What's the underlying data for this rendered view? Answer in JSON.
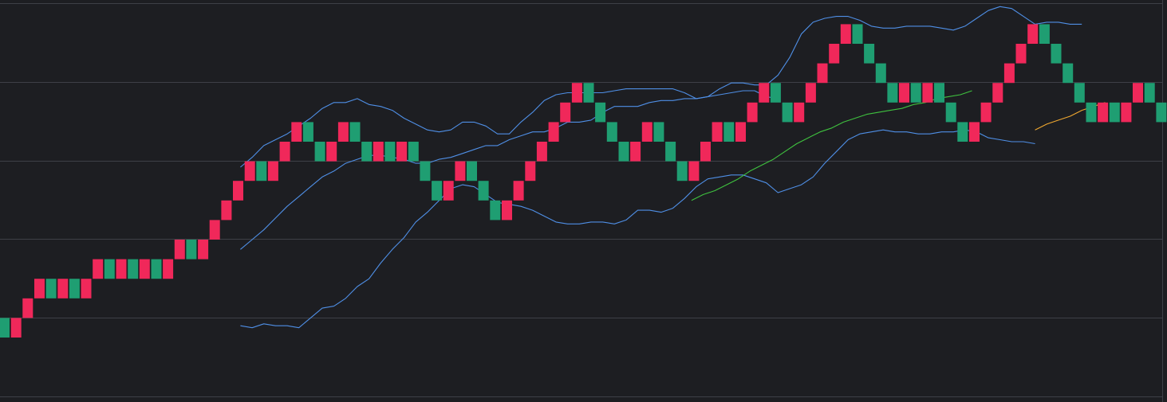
{
  "chart_data": {
    "type": "renko",
    "grid": true,
    "colors": {
      "background": "#1d1e22",
      "grid": "#3e4047",
      "border": "#3e4047",
      "up_brick": "#f0285a",
      "down_brick": "#1f9e72",
      "upper_band": "#4f8fe6",
      "middle_band": "#4f8fe6",
      "lower_band": "#4f8fe6",
      "moving_average": "#3fc23f",
      "long_average": "#f0a830"
    },
    "bricks": [
      {
        "level": 0,
        "dir": "down"
      },
      {
        "level": 0,
        "dir": "up"
      },
      {
        "level": 1,
        "dir": "up"
      },
      {
        "level": 2,
        "dir": "up"
      },
      {
        "level": 2,
        "dir": "down"
      },
      {
        "level": 2,
        "dir": "up"
      },
      {
        "level": 2,
        "dir": "down"
      },
      {
        "level": 2,
        "dir": "up"
      },
      {
        "level": 3,
        "dir": "up"
      },
      {
        "level": 3,
        "dir": "down"
      },
      {
        "level": 3,
        "dir": "up"
      },
      {
        "level": 3,
        "dir": "down"
      },
      {
        "level": 3,
        "dir": "up"
      },
      {
        "level": 3,
        "dir": "down"
      },
      {
        "level": 3,
        "dir": "up"
      },
      {
        "level": 4,
        "dir": "up"
      },
      {
        "level": 4,
        "dir": "down"
      },
      {
        "level": 4,
        "dir": "up"
      },
      {
        "level": 5,
        "dir": "up"
      },
      {
        "level": 6,
        "dir": "up"
      },
      {
        "level": 7,
        "dir": "up"
      },
      {
        "level": 8,
        "dir": "up"
      },
      {
        "level": 8,
        "dir": "down"
      },
      {
        "level": 8,
        "dir": "up"
      },
      {
        "level": 9,
        "dir": "up"
      },
      {
        "level": 10,
        "dir": "up"
      },
      {
        "level": 10,
        "dir": "down"
      },
      {
        "level": 9,
        "dir": "down"
      },
      {
        "level": 9,
        "dir": "up"
      },
      {
        "level": 10,
        "dir": "up"
      },
      {
        "level": 10,
        "dir": "down"
      },
      {
        "level": 9,
        "dir": "down"
      },
      {
        "level": 9,
        "dir": "up"
      },
      {
        "level": 9,
        "dir": "down"
      },
      {
        "level": 9,
        "dir": "up"
      },
      {
        "level": 9,
        "dir": "down"
      },
      {
        "level": 8,
        "dir": "down"
      },
      {
        "level": 7,
        "dir": "down"
      },
      {
        "level": 7,
        "dir": "up"
      },
      {
        "level": 8,
        "dir": "up"
      },
      {
        "level": 8,
        "dir": "down"
      },
      {
        "level": 7,
        "dir": "down"
      },
      {
        "level": 6,
        "dir": "down"
      },
      {
        "level": 6,
        "dir": "up"
      },
      {
        "level": 7,
        "dir": "up"
      },
      {
        "level": 8,
        "dir": "up"
      },
      {
        "level": 9,
        "dir": "up"
      },
      {
        "level": 10,
        "dir": "up"
      },
      {
        "level": 11,
        "dir": "up"
      },
      {
        "level": 12,
        "dir": "up"
      },
      {
        "level": 12,
        "dir": "down"
      },
      {
        "level": 11,
        "dir": "down"
      },
      {
        "level": 10,
        "dir": "down"
      },
      {
        "level": 9,
        "dir": "down"
      },
      {
        "level": 9,
        "dir": "up"
      },
      {
        "level": 10,
        "dir": "up"
      },
      {
        "level": 10,
        "dir": "down"
      },
      {
        "level": 9,
        "dir": "down"
      },
      {
        "level": 8,
        "dir": "down"
      },
      {
        "level": 8,
        "dir": "up"
      },
      {
        "level": 9,
        "dir": "up"
      },
      {
        "level": 10,
        "dir": "up"
      },
      {
        "level": 10,
        "dir": "down"
      },
      {
        "level": 10,
        "dir": "up"
      },
      {
        "level": 11,
        "dir": "up"
      },
      {
        "level": 12,
        "dir": "up"
      },
      {
        "level": 12,
        "dir": "down"
      },
      {
        "level": 11,
        "dir": "down"
      },
      {
        "level": 11,
        "dir": "up"
      },
      {
        "level": 12,
        "dir": "up"
      },
      {
        "level": 13,
        "dir": "up"
      },
      {
        "level": 14,
        "dir": "up"
      },
      {
        "level": 15,
        "dir": "up"
      },
      {
        "level": 15,
        "dir": "down"
      },
      {
        "level": 14,
        "dir": "down"
      },
      {
        "level": 13,
        "dir": "down"
      },
      {
        "level": 12,
        "dir": "down"
      },
      {
        "level": 12,
        "dir": "up"
      },
      {
        "level": 12,
        "dir": "down"
      },
      {
        "level": 12,
        "dir": "up"
      },
      {
        "level": 12,
        "dir": "down"
      },
      {
        "level": 11,
        "dir": "down"
      },
      {
        "level": 10,
        "dir": "down"
      },
      {
        "level": 10,
        "dir": "up"
      },
      {
        "level": 11,
        "dir": "up"
      },
      {
        "level": 12,
        "dir": "up"
      },
      {
        "level": 13,
        "dir": "up"
      },
      {
        "level": 14,
        "dir": "up"
      },
      {
        "level": 15,
        "dir": "up"
      },
      {
        "level": 15,
        "dir": "down"
      },
      {
        "level": 14,
        "dir": "down"
      },
      {
        "level": 13,
        "dir": "down"
      },
      {
        "level": 12,
        "dir": "down"
      },
      {
        "level": 11,
        "dir": "down"
      },
      {
        "level": 11,
        "dir": "up"
      },
      {
        "level": 11,
        "dir": "down"
      },
      {
        "level": 11,
        "dir": "up"
      },
      {
        "level": 12,
        "dir": "up"
      },
      {
        "level": 12,
        "dir": "down"
      },
      {
        "level": 11,
        "dir": "down"
      }
    ],
    "series": [
      {
        "key": "upper_band",
        "start_index": 20.2,
        "values": [
          8.2,
          8.7,
          9.3,
          9.6,
          9.9,
          10.3,
          10.7,
          11.2,
          11.5,
          11.5,
          11.7,
          11.4,
          11.3,
          11.1,
          10.7,
          10.4,
          10.1,
          10.0,
          10.1,
          10.5,
          10.5,
          10.3,
          9.9,
          9.9,
          10.5,
          11.0,
          11.6,
          11.9,
          12.0,
          12.0,
          12.0,
          12.0,
          12.1,
          12.2,
          12.2,
          12.2,
          12.2,
          12.2,
          12.0,
          11.7,
          11.8,
          12.2,
          12.5,
          12.5,
          12.4,
          12.4,
          12.9,
          13.8,
          15.0,
          15.6,
          15.8,
          15.9,
          15.9,
          15.7,
          15.4,
          15.3,
          15.3,
          15.4,
          15.4,
          15.4,
          15.3,
          15.2,
          15.4,
          15.8,
          16.2,
          16.4,
          16.3,
          15.9,
          15.5,
          15.6,
          15.6,
          15.5,
          15.5
        ]
      },
      {
        "key": "middle_band",
        "start_index": 20.2,
        "values": [
          4.0,
          4.5,
          5.0,
          5.6,
          6.2,
          6.7,
          7.2,
          7.7,
          8.0,
          8.4,
          8.6,
          8.8,
          8.8,
          8.7,
          8.6,
          8.4,
          8.4,
          8.6,
          8.7,
          8.9,
          9.1,
          9.3,
          9.3,
          9.6,
          9.8,
          10.0,
          10.0,
          10.2,
          10.5,
          10.5,
          10.6,
          11.0,
          11.3,
          11.3,
          11.3,
          11.5,
          11.6,
          11.6,
          11.7,
          11.7,
          11.8,
          11.9,
          12.0,
          12.1,
          12.1,
          11.8,
          11.7
        ]
      },
      {
        "key": "lower_band",
        "start_index": 20.2,
        "values": [
          0.1,
          0.0,
          0.2,
          0.1,
          0.1,
          0.0,
          0.5,
          1.0,
          1.1,
          1.5,
          2.1,
          2.5,
          3.3,
          4.0,
          4.6,
          5.4,
          5.9,
          6.5,
          7.1,
          7.3,
          7.2,
          6.8,
          6.4,
          6.3,
          6.2,
          6.0,
          5.7,
          5.4,
          5.3,
          5.3,
          5.4,
          5.4,
          5.3,
          5.5,
          6.0,
          6.0,
          5.9,
          6.1,
          6.6,
          7.2,
          7.6,
          7.7,
          7.8,
          7.8,
          7.6,
          7.4,
          6.9,
          7.1,
          7.3,
          7.7,
          8.4,
          9.0,
          9.6,
          9.9,
          10.0,
          10.1,
          10.0,
          10.0,
          9.9,
          9.9,
          10.0,
          10.0,
          10.1,
          10.0,
          9.7,
          9.6,
          9.5,
          9.5,
          9.4
        ]
      },
      {
        "key": "moving_average",
        "start_index": 58.8,
        "values": [
          6.5,
          6.8,
          7.0,
          7.3,
          7.6,
          8.0,
          8.3,
          8.6,
          9.0,
          9.4,
          9.7,
          10.0,
          10.2,
          10.5,
          10.7,
          10.9,
          11.0,
          11.1,
          11.2,
          11.4,
          11.5,
          11.7,
          11.8,
          11.9,
          12.1
        ]
      },
      {
        "key": "long_average",
        "start_index": 88.2,
        "values": [
          10.1,
          10.4,
          10.6,
          10.8,
          11.1,
          11.3,
          11.5
        ]
      }
    ]
  }
}
